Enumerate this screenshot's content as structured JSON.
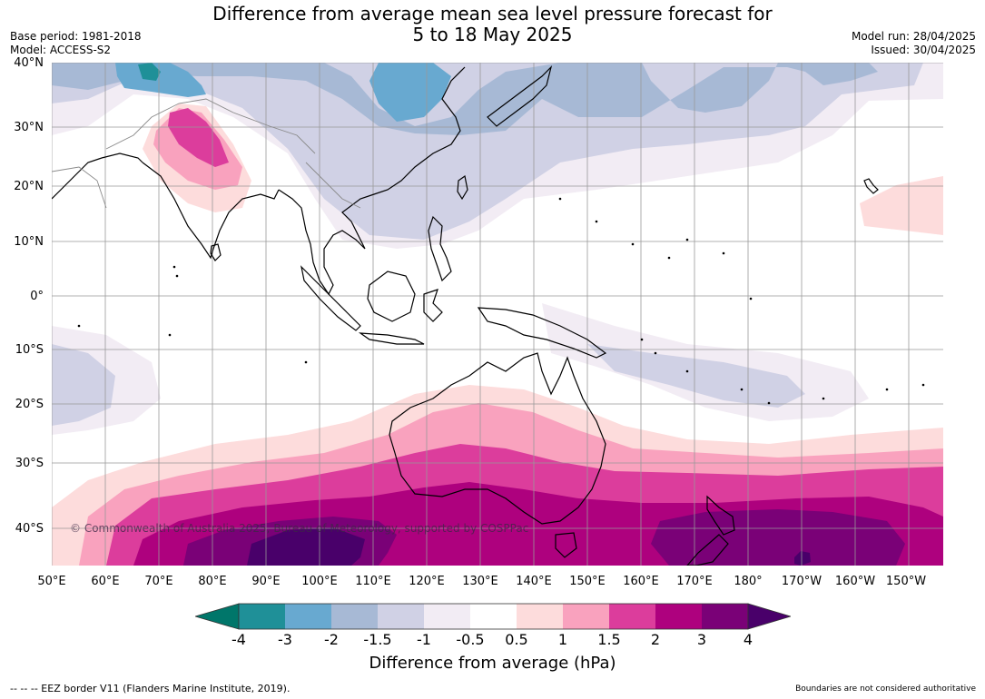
{
  "title": {
    "line1": "Difference from average mean sea level pressure forecast for",
    "line2": "5 to 18 May 2025"
  },
  "meta_left": {
    "base_period": "Base period: 1981-2018",
    "model": "Model: ACCESS-S2"
  },
  "meta_right": {
    "model_run": "Model run: 28/04/2025",
    "issued": "Issued: 30/04/2025"
  },
  "lat_ticks": [
    "40°N",
    "30°N",
    "20°N",
    "10°N",
    "0°",
    "10°S",
    "20°S",
    "30°S",
    "40°S"
  ],
  "lon_ticks": [
    "50°E",
    "60°E",
    "70°E",
    "80°E",
    "90°E",
    "100°E",
    "110°E",
    "120°E",
    "130°E",
    "140°E",
    "150°E",
    "160°E",
    "170°E",
    "180°",
    "170°W",
    "160°W",
    "150°W"
  ],
  "copyright": "© Commonwealth of Australia 2025, Bureau of Meteorology, supported by COSPPac",
  "colorbar": {
    "title": "Difference from average (hPa)",
    "labels": [
      "-4",
      "-3",
      "-2",
      "-1.5",
      "-1",
      "-0.5",
      "0.5",
      "1",
      "1.5",
      "2",
      "3",
      "4"
    ],
    "colors": [
      "#1f9098",
      "#68a9d0",
      "#a7b9d5",
      "#d0d1e5",
      "#f2ecf4",
      "#ffffff",
      "#fddcdc",
      "#f9a2be",
      "#dc3d9c",
      "#ae017e",
      "#7a0177"
    ],
    "low_extend_color": "#00766a",
    "high_extend_color": "#49006a"
  },
  "footer": {
    "left": "--  --  -- EEZ border V11 (Flanders Marine Institute, 2019).",
    "right": "Boundaries are not considered authoritative"
  }
}
